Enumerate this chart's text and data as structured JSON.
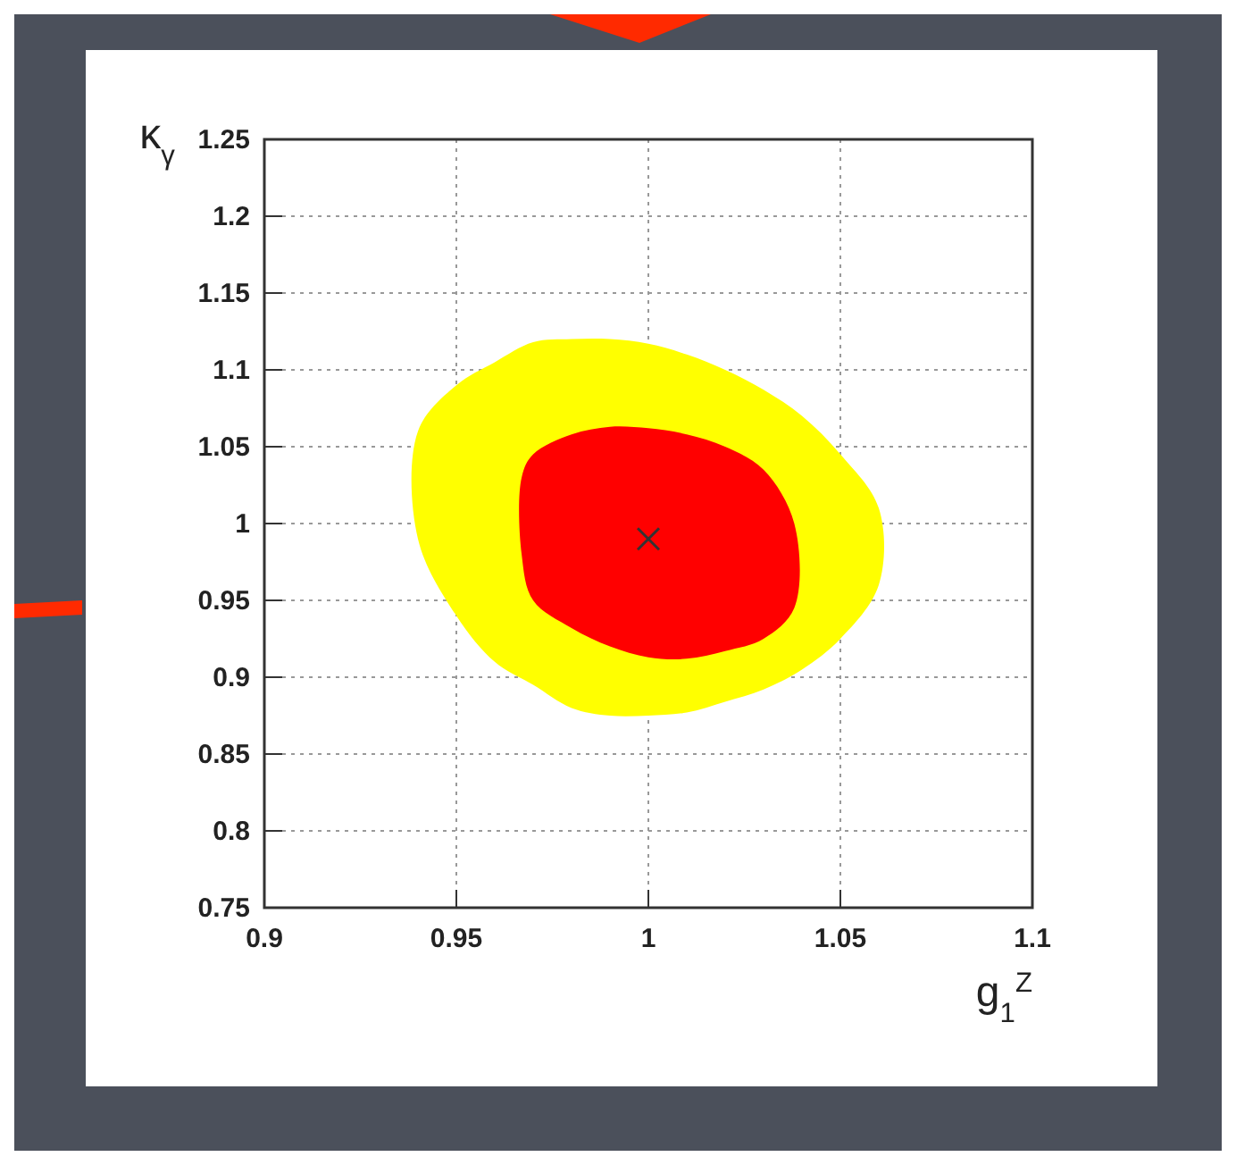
{
  "chart_data": {
    "type": "area",
    "xlabel": "g$_{1}$$^{Z}$",
    "ylabel": "κ$_{γ}$",
    "xlim": [
      0.9,
      1.1
    ],
    "xticks": [
      0.9,
      0.95,
      1,
      1.05,
      1.1
    ],
    "ylim": [
      0.75,
      1.25
    ],
    "yticks": [
      0.75,
      0.8,
      0.85,
      0.9,
      0.95,
      1,
      1.05,
      1.1,
      1.15,
      1.2,
      1.25
    ],
    "grid": true,
    "line_style": "dotted",
    "series": [
      {
        "color": "#ffff00",
        "x": [
          0.94,
          0.95,
          0.96,
          0.97,
          0.98,
          0.99,
          1.0,
          1.01,
          1.02,
          1.03,
          1.04,
          1.05,
          1.06,
          1.06,
          1.05,
          1.04,
          1.03,
          1.02,
          1.01,
          1.0,
          0.99,
          0.98,
          0.97,
          0.96,
          0.95,
          0.94
        ],
        "values": [
          1.06,
          1.09,
          1.105,
          1.118,
          1.12,
          1.12,
          1.117,
          1.11,
          1.1,
          1.087,
          1.07,
          1.045,
          1.01,
          0.96,
          0.925,
          0.905,
          0.892,
          0.884,
          0.877,
          0.875,
          0.875,
          0.88,
          0.895,
          0.91,
          0.94,
          0.99
        ]
      },
      {
        "color": "#ff0000",
        "x": [
          0.967,
          0.97,
          0.98,
          0.99,
          1.0,
          1.01,
          1.02,
          1.03,
          1.038,
          1.038,
          1.03,
          1.02,
          1.01,
          1.0,
          0.99,
          0.98,
          0.97,
          0.967
        ],
        "values": [
          1.03,
          1.045,
          1.058,
          1.063,
          1.062,
          1.058,
          1.05,
          1.035,
          1.0,
          0.945,
          0.925,
          0.917,
          0.912,
          0.913,
          0.92,
          0.932,
          0.95,
          0.98
        ]
      },
      {
        "type": "scatter",
        "color": "#333333",
        "marker": "cross",
        "x": [
          1.0
        ],
        "values": [
          0.99
        ]
      }
    ]
  }
}
